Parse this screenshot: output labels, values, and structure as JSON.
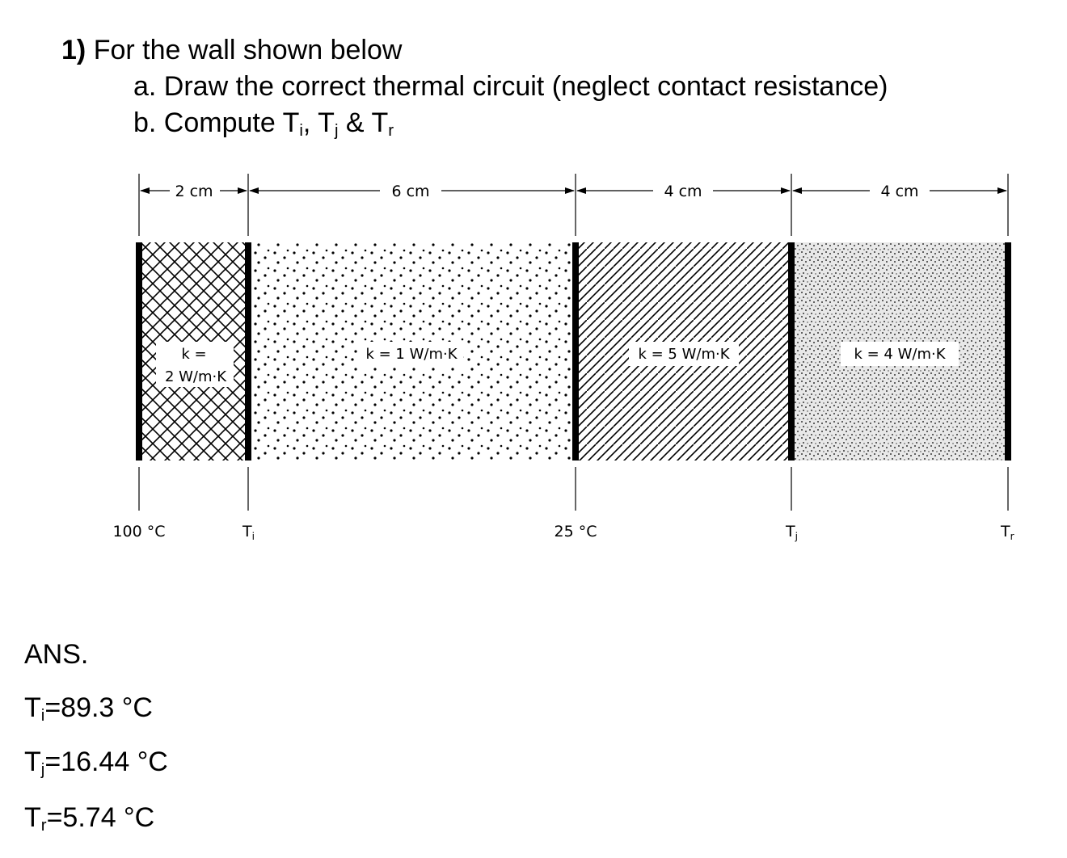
{
  "problem": {
    "number": "1)",
    "statement": "For the wall shown below",
    "part_a": "a. Draw the correct thermal circuit (neglect contact resistance)",
    "part_b_prefix": "b. Compute T",
    "part_b_sub1": "i",
    "part_b_sep1": ", T",
    "part_b_sub2": "j",
    "part_b_sep2": " & T",
    "part_b_sub3": "r"
  },
  "figure": {
    "layers": [
      {
        "width_label": "2 cm",
        "k_line1": "k =",
        "k_line2": "2 W/m·K",
        "pattern": "crosshatch"
      },
      {
        "width_label": "6 cm",
        "k_line1": "k = 1 W/m·K",
        "pattern": "sparse-dots"
      },
      {
        "width_label": "4 cm",
        "k_line1": "k = 5 W/m·K",
        "pattern": "diagonal-lines"
      },
      {
        "width_label": "4 cm",
        "k_line1": "k = 4 W/m·K",
        "pattern": "dense-dots"
      }
    ],
    "boundaries": [
      {
        "label": "100 °C"
      },
      {
        "label": "T",
        "sub": "i"
      },
      {
        "label": "25 °C"
      },
      {
        "label": "T",
        "sub": "j"
      },
      {
        "label": "T",
        "sub": "r"
      }
    ]
  },
  "answers": {
    "heading": "ANS.",
    "items": [
      {
        "var": "T",
        "sub": "i",
        "value": "=89.3 °C"
      },
      {
        "var": "T",
        "sub": "j",
        "value": "=16.44 °C"
      },
      {
        "var": "T",
        "sub": "r",
        "value": "=5.74 °C"
      }
    ]
  }
}
